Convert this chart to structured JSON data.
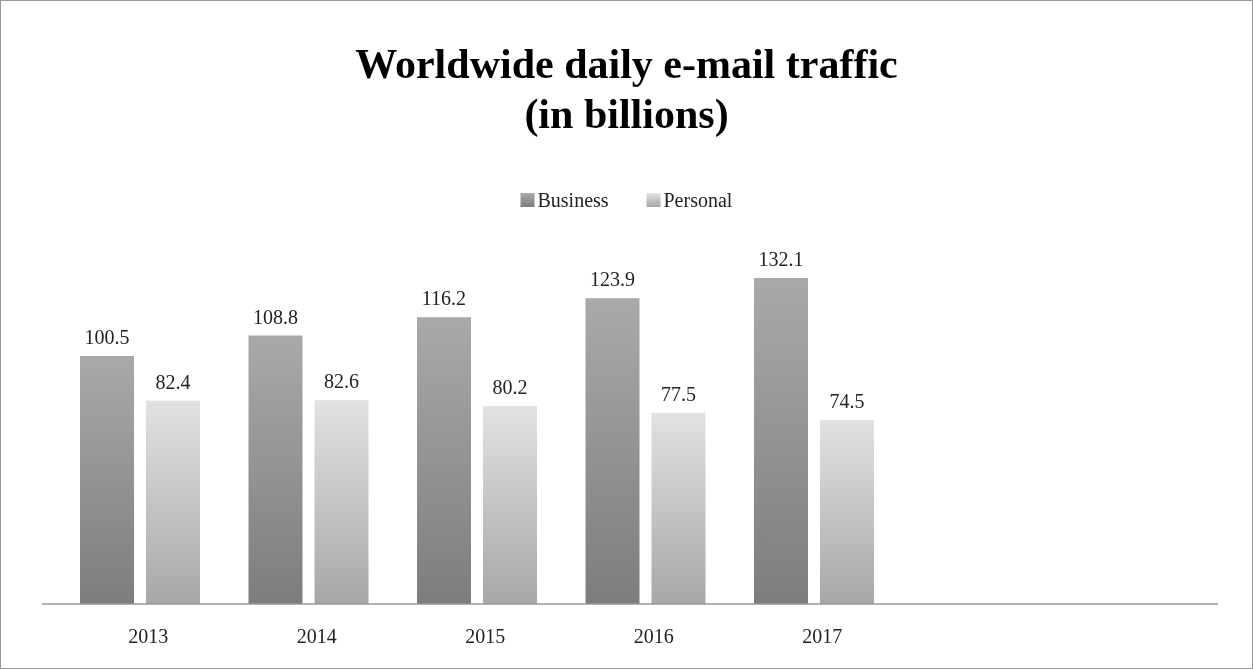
{
  "chart_data": {
    "type": "bar",
    "title": "Worldwide daily e-mail traffic\n(in billions)",
    "categories": [
      "2013",
      "2014",
      "2015",
      "2016",
      "2017"
    ],
    "series": [
      {
        "name": "Business",
        "color": "#a0a0a0",
        "values": [
          100.5,
          108.8,
          116.2,
          123.9,
          132.1
        ]
      },
      {
        "name": "Personal",
        "color": "#d6d6d6",
        "values": [
          82.4,
          82.6,
          80.2,
          77.5,
          74.5
        ]
      }
    ],
    "data_labels": true,
    "legend": "top"
  }
}
